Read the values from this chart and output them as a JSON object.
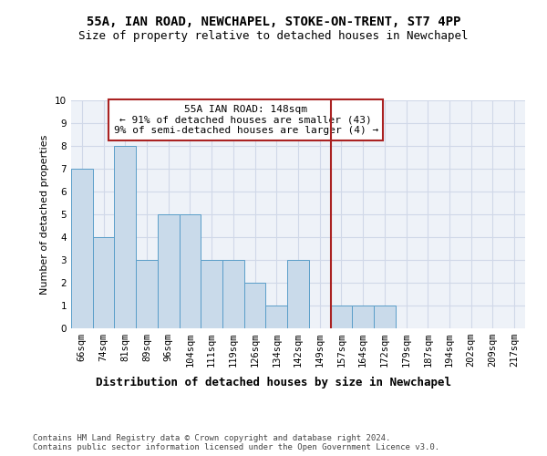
{
  "title": "55A, IAN ROAD, NEWCHAPEL, STOKE-ON-TRENT, ST7 4PP",
  "subtitle": "Size of property relative to detached houses in Newchapel",
  "xlabel": "Distribution of detached houses by size in Newchapel",
  "ylabel": "Number of detached properties",
  "categories": [
    "66sqm",
    "74sqm",
    "81sqm",
    "89sqm",
    "96sqm",
    "104sqm",
    "111sqm",
    "119sqm",
    "126sqm",
    "134sqm",
    "142sqm",
    "149sqm",
    "157sqm",
    "164sqm",
    "172sqm",
    "179sqm",
    "187sqm",
    "194sqm",
    "202sqm",
    "209sqm",
    "217sqm"
  ],
  "values": [
    7,
    4,
    8,
    3,
    5,
    5,
    3,
    3,
    2,
    1,
    3,
    0,
    1,
    1,
    1,
    0,
    0,
    0,
    0,
    0,
    0
  ],
  "bar_color": "#c9daea",
  "bar_edge_color": "#5a9ec9",
  "vline_index": 11.5,
  "vline_color": "#aa2222",
  "annotation_text": "55A IAN ROAD: 148sqm\n← 91% of detached houses are smaller (43)\n9% of semi-detached houses are larger (4) →",
  "annotation_box_color": "#aa2222",
  "ylim": [
    0,
    10
  ],
  "yticks": [
    0,
    1,
    2,
    3,
    4,
    5,
    6,
    7,
    8,
    9,
    10
  ],
  "footer": "Contains HM Land Registry data © Crown copyright and database right 2024.\nContains public sector information licensed under the Open Government Licence v3.0.",
  "bg_color": "#eef2f8",
  "grid_color": "#d0d8e8",
  "title_fontsize": 10,
  "subtitle_fontsize": 9,
  "xlabel_fontsize": 9,
  "ylabel_fontsize": 8,
  "tick_fontsize": 7.5,
  "annotation_fontsize": 8
}
